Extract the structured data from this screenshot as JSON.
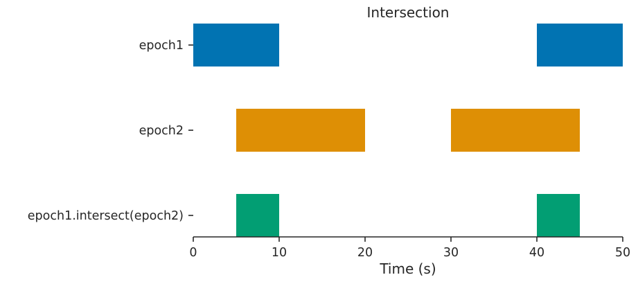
{
  "chart_data": {
    "type": "broken_barh",
    "title": "Intersection",
    "xlabel": "Time (s)",
    "ylabel": "",
    "xlim": [
      0,
      50
    ],
    "xticks": [
      0,
      10,
      20,
      30,
      40,
      50
    ],
    "xtick_labels": [
      "0",
      "10",
      "20",
      "30",
      "40",
      "50"
    ],
    "grid": false,
    "series": [
      {
        "name": "epoch1",
        "color": "#0173b2",
        "intervals": [
          [
            0,
            10
          ],
          [
            40,
            50
          ]
        ]
      },
      {
        "name": "epoch2",
        "color": "#de8f05",
        "intervals": [
          [
            5,
            20
          ],
          [
            30,
            45
          ]
        ]
      },
      {
        "name": "epoch1.intersect(epoch2)",
        "color": "#029e73",
        "intervals": [
          [
            5,
            10
          ],
          [
            40,
            45
          ]
        ]
      }
    ]
  }
}
